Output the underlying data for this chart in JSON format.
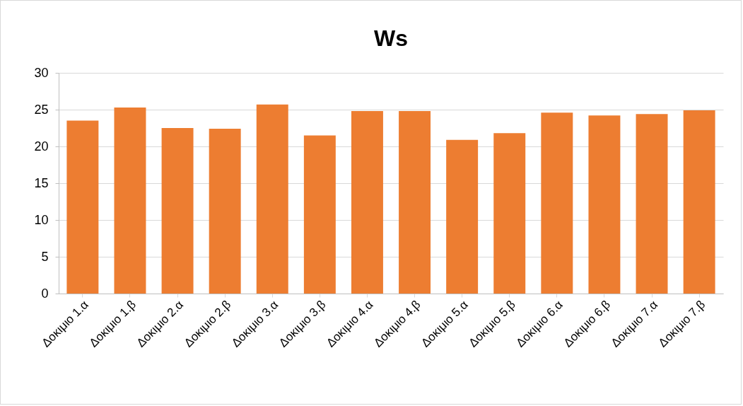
{
  "chart_data": {
    "type": "bar",
    "title": "Ws",
    "categories": [
      "Δοκιμιο 1.α",
      "Δοκιμιο 1.β",
      "Δοκιμιο 2.α",
      "Δοκιμιο 2.β",
      "Δοκιμιο 3.α",
      "Δοκιμιο 3.β",
      "Δοκιμιο 4.α",
      "Δοκιμιο 4.β",
      "Δοκιμιο 5.α",
      "Δοκιμιο 5.β",
      "Δοκιμιο 6.α",
      "Δοκιμιο 6.β",
      "Δοκιμιο 7.α",
      "Δοκιμιο 7.β"
    ],
    "values": [
      23.5,
      25.3,
      22.5,
      22.4,
      25.7,
      21.5,
      24.8,
      24.8,
      20.9,
      21.8,
      24.6,
      24.2,
      24.4,
      24.9
    ],
    "color": "#ed7d31",
    "ylim": [
      0,
      30
    ],
    "yticks": [
      0,
      5,
      10,
      15,
      20,
      25,
      30
    ],
    "grid": "y"
  }
}
